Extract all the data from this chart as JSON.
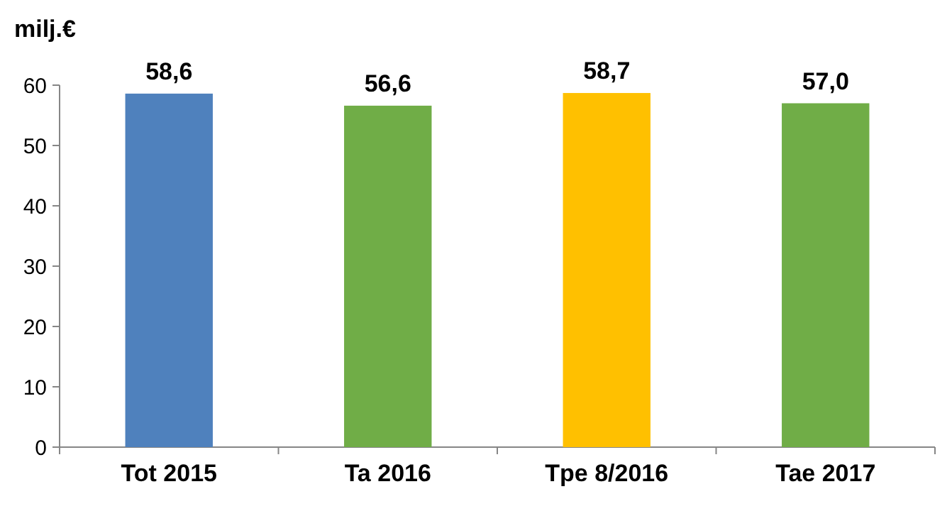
{
  "chart_data": {
    "type": "bar",
    "ylabel": "milj.€",
    "categories": [
      "Tot 2015",
      "Ta 2016",
      "Tpe 8/2016",
      "Tae 2017"
    ],
    "values": [
      58.6,
      56.6,
      58.7,
      57.0
    ],
    "value_labels": [
      "58,6",
      "56,6",
      "58,7",
      "57,0"
    ],
    "colors": [
      "#4f81bd",
      "#70ad47",
      "#ffc000",
      "#70ad47"
    ],
    "ylim": [
      0,
      60
    ],
    "yticks": [
      0,
      10,
      20,
      30,
      40,
      50,
      60
    ],
    "grid": false
  }
}
